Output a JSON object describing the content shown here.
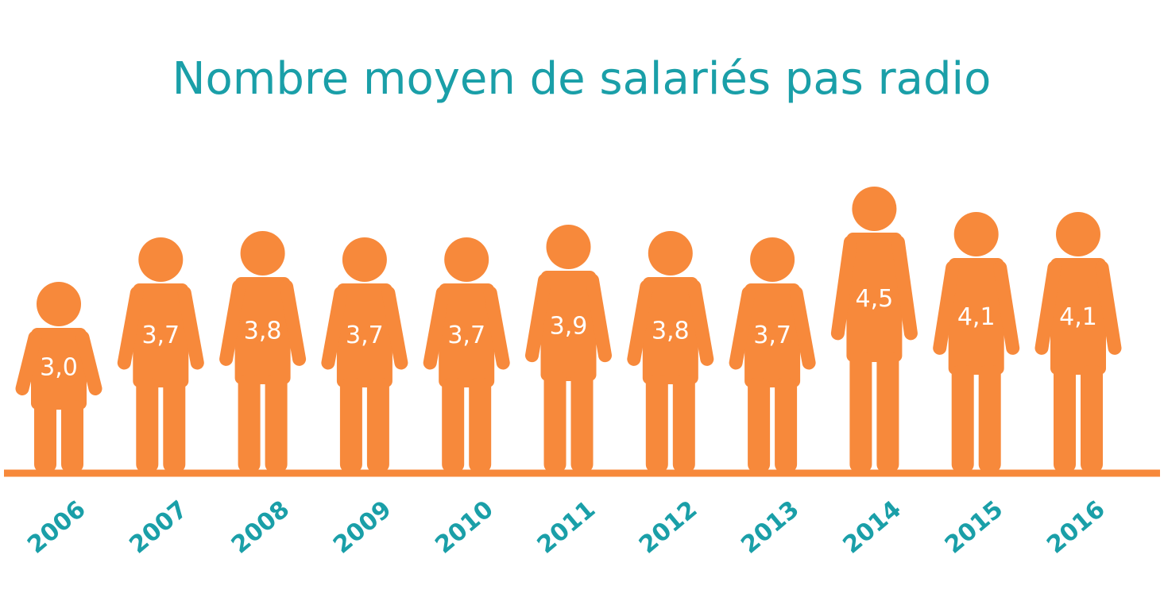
{
  "chart_data": {
    "type": "pictogram",
    "title": "Nombre moyen de salariés pas radio",
    "categories": [
      "2006",
      "2007",
      "2008",
      "2009",
      "2010",
      "2011",
      "2012",
      "2013",
      "2014",
      "2015",
      "2016"
    ],
    "values": [
      3.0,
      3.7,
      3.8,
      3.7,
      3.7,
      3.9,
      3.8,
      3.7,
      4.5,
      4.1,
      4.1
    ],
    "value_labels": [
      "3,0",
      "3,7",
      "3,8",
      "3,7",
      "3,7",
      "3,9",
      "3,8",
      "3,7",
      "4,5",
      "4,1",
      "4,1"
    ],
    "color": "#f7893b"
  }
}
